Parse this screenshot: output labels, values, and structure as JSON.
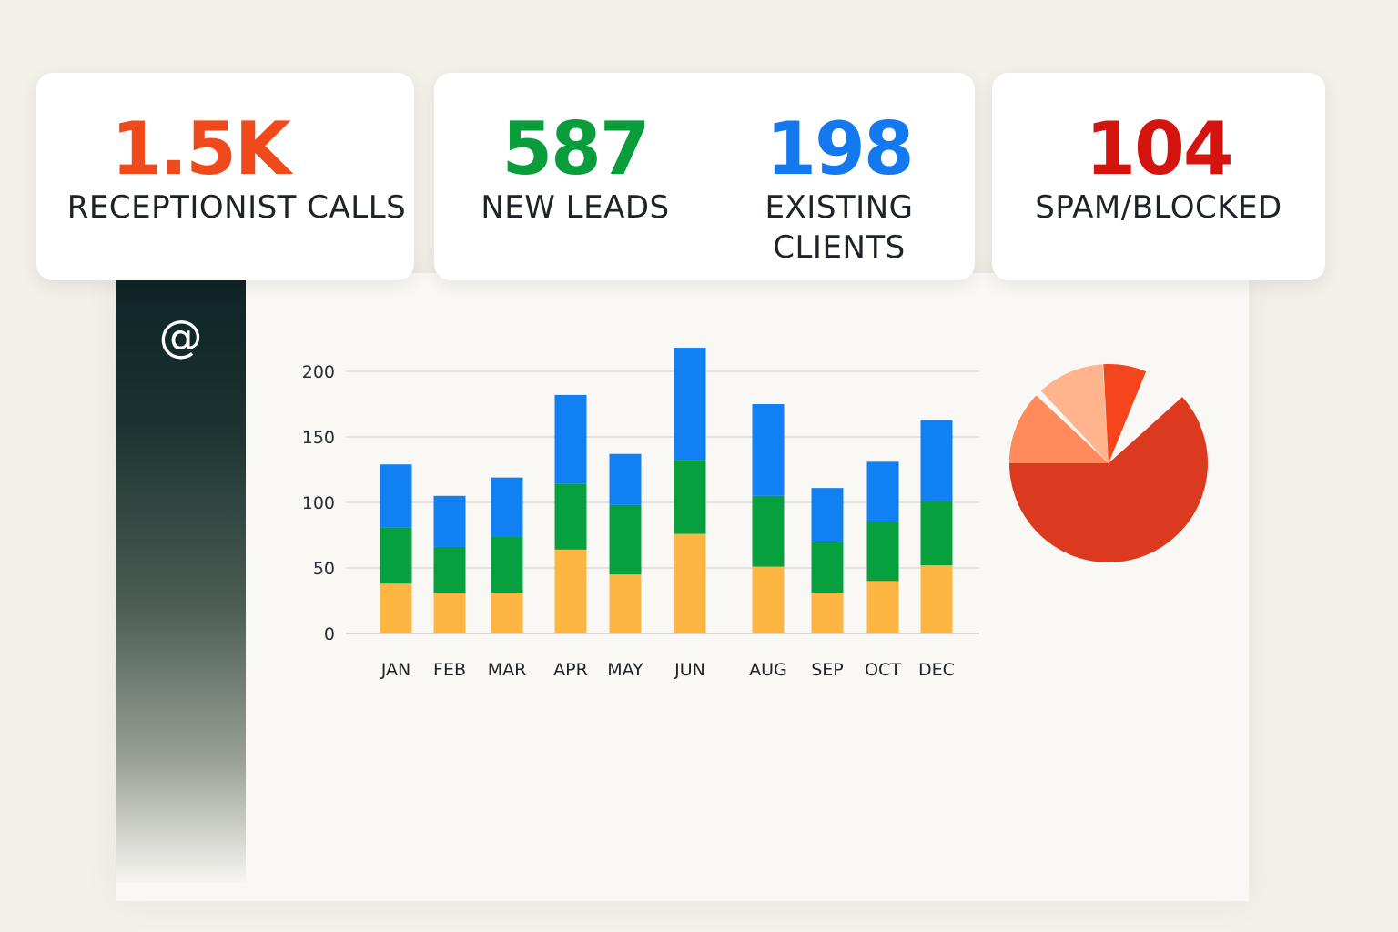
{
  "colors": {
    "receptionist": "#f04a1c",
    "new_leads": "#0a9d3c",
    "existing": "#1478ee",
    "spam": "#d3140f",
    "bar_bottom": "#fdb642",
    "bar_middle": "#06a03f",
    "bar_top": "#1180f2"
  },
  "sidebar": {
    "icon": "at-sign-icon",
    "glyph": "@"
  },
  "metrics": {
    "receptionist_calls": {
      "value": "1.5K",
      "label": "RECEPTIONIST CALLS"
    },
    "new_leads": {
      "value": "587",
      "label": "NEW LEADS"
    },
    "existing_clients": {
      "value": "198",
      "label": "EXISTING",
      "label_line2": "CLIENTS"
    },
    "spam_blocked": {
      "value": "104",
      "label": "SPAM/BLOCKED"
    }
  },
  "chart_data": [
    {
      "type": "bar",
      "stacked": true,
      "categories": [
        "JAN",
        "FEB",
        "MAR",
        "APR",
        "MAY",
        "JUN",
        "AUG",
        "SEP",
        "OCT",
        "DEC"
      ],
      "series": [
        {
          "values": [
            38,
            31,
            31,
            64,
            45,
            76,
            51,
            31,
            40,
            52
          ],
          "color": "#fdb642"
        },
        {
          "values": [
            43,
            35,
            43,
            50,
            53,
            56,
            54,
            39,
            45,
            49
          ],
          "color": "#06a03f"
        },
        {
          "values": [
            48,
            39,
            45,
            68,
            39,
            86,
            70,
            41,
            46,
            62
          ],
          "color": "#1180f2"
        }
      ],
      "ylim": [
        0,
        220
      ],
      "yticks": [
        0,
        50,
        100,
        150,
        200
      ],
      "grid": true,
      "legend": "none"
    },
    {
      "type": "pie",
      "slices": [
        {
          "value": 70,
          "color": "#dc3a1f"
        },
        {
          "value": 12,
          "color": "#ff8a5c"
        },
        {
          "value": 11,
          "color": "#ffb48e"
        },
        {
          "value": 7,
          "color": "#f5451c"
        }
      ]
    }
  ]
}
